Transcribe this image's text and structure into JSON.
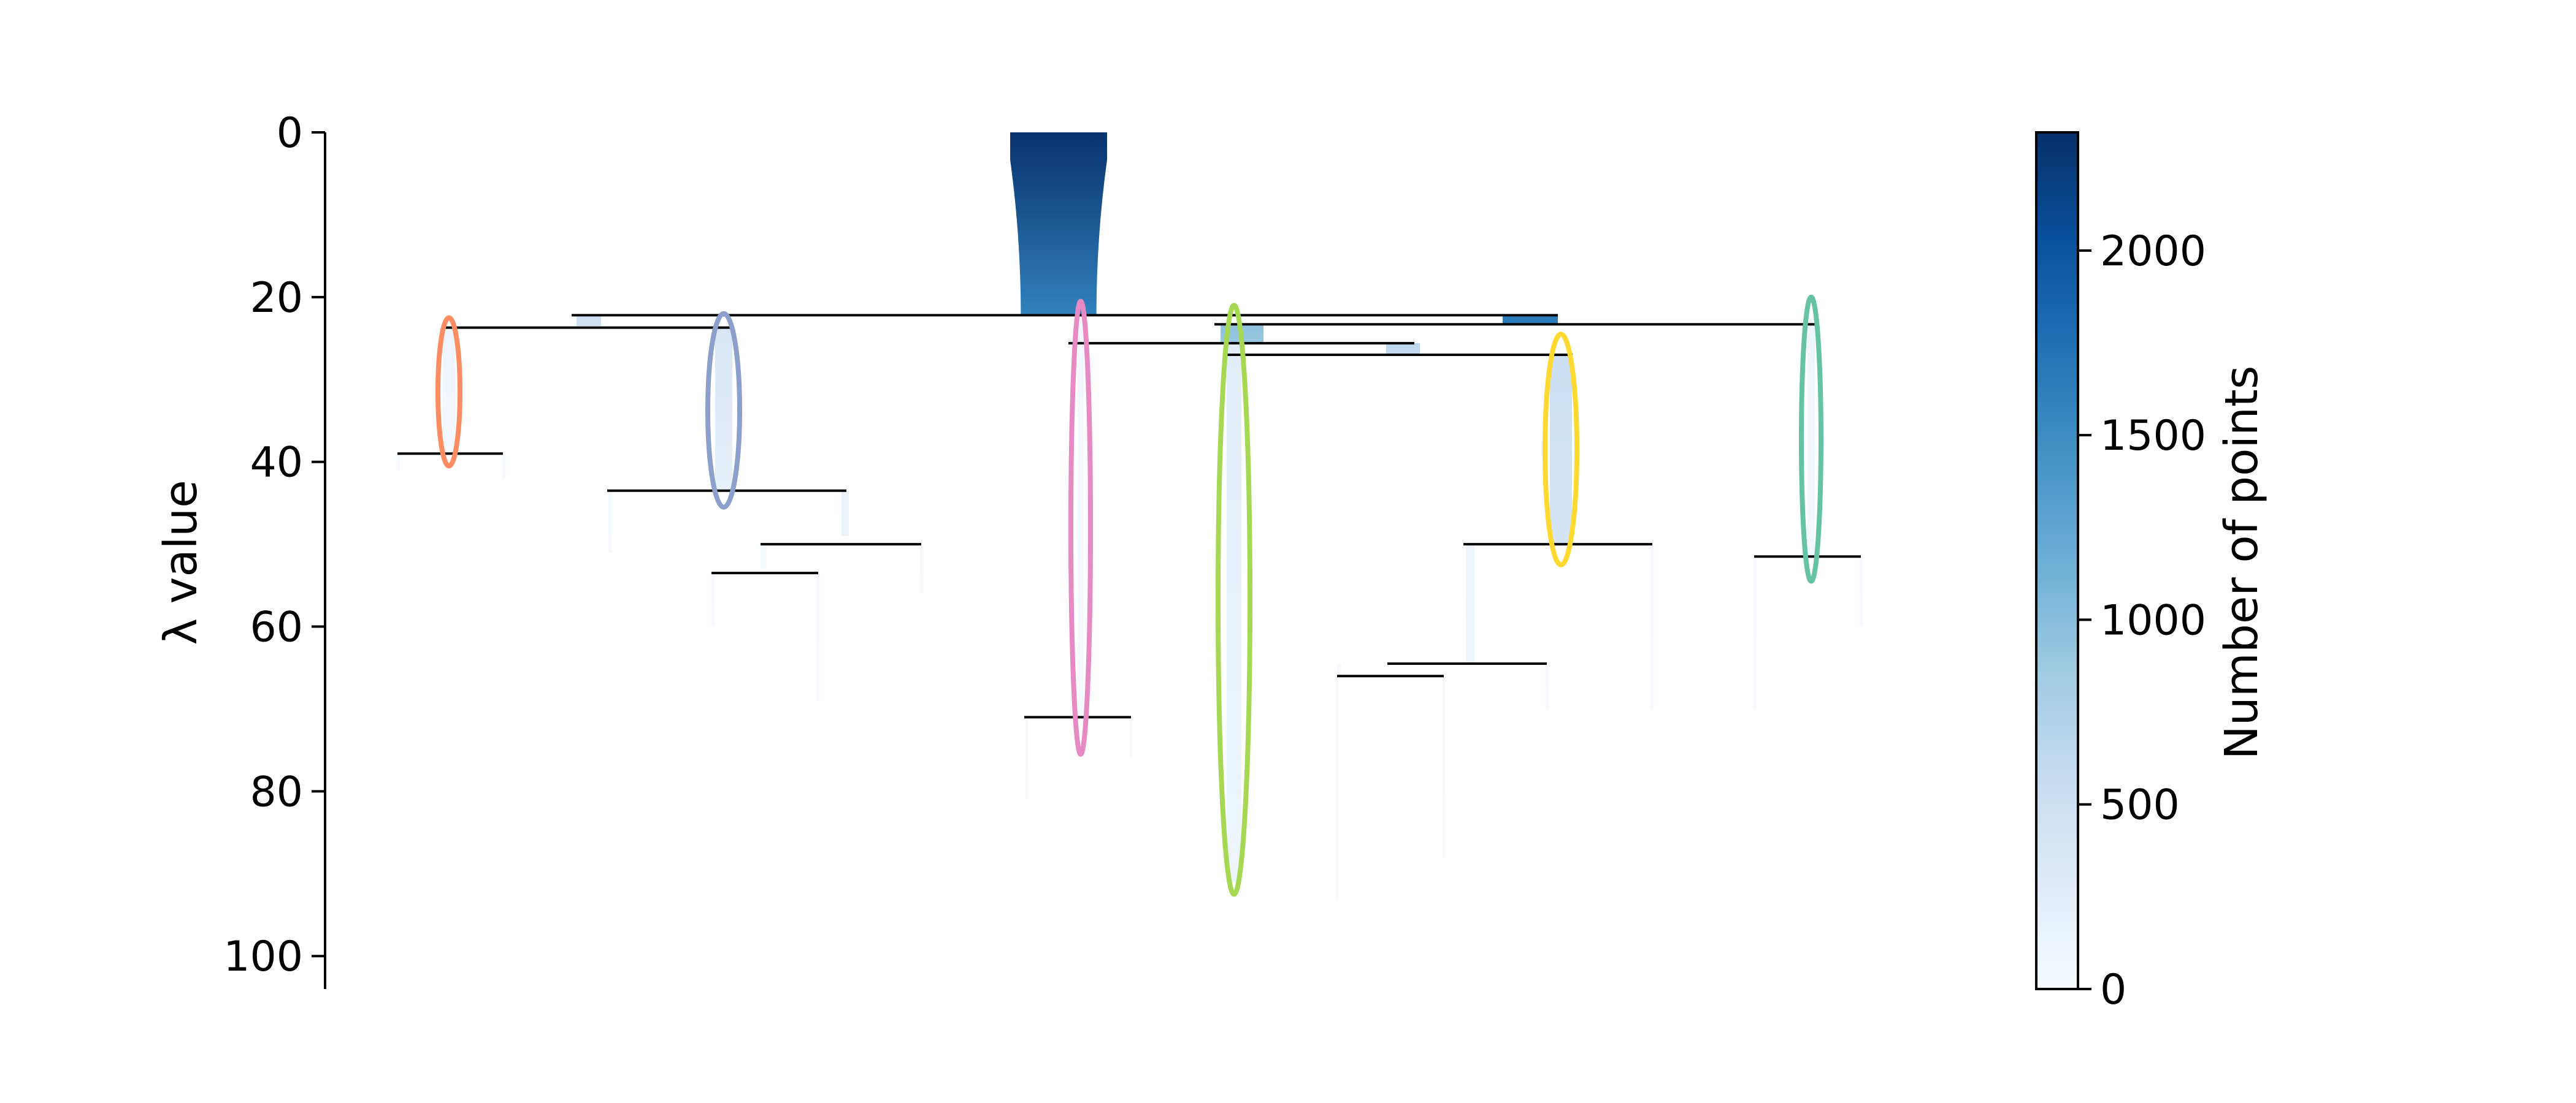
{
  "chart_data": {
    "type": "condensed-tree",
    "title": "",
    "xlabel": "",
    "ylabel": "λ value",
    "ylim": [
      0,
      104
    ],
    "y_inverted": true,
    "yticks": [
      0,
      20,
      40,
      60,
      80,
      100
    ],
    "colorbar": {
      "label": "Number of points",
      "range": [
        0,
        2320
      ],
      "ticks": [
        0,
        500,
        1000,
        1500,
        2000
      ],
      "colormap": "Blues"
    },
    "branches": [
      {
        "id": "root",
        "x_left": 1647,
        "x_right": 1805,
        "y_start": 0,
        "y_end": 22.2,
        "points_start": 2300,
        "points_end": 1600,
        "bottom_ratio": 0.78
      },
      {
        "id": "b1",
        "x_left": 940,
        "x_right": 980,
        "y_start": 22.2,
        "y_end": 23.5,
        "points_start": 500,
        "points_end": 500
      },
      {
        "id": "b2",
        "x_left": 2450,
        "x_right": 2540,
        "y_start": 22.2,
        "y_end": 23.3,
        "points_start": 1650,
        "points_end": 1650
      },
      {
        "id": "b3",
        "x_left": 1990,
        "x_right": 2060,
        "y_start": 23.3,
        "y_end": 25.6,
        "points_start": 950,
        "points_end": 900
      },
      {
        "id": "b4",
        "x_left": 2260,
        "x_right": 2315,
        "y_start": 25.6,
        "y_end": 27.0,
        "points_start": 650,
        "points_end": 600
      },
      {
        "id": "c1",
        "x_left": 722,
        "x_right": 742,
        "y_start": 23.7,
        "y_end": 39,
        "points_start": 120,
        "points_end": 40
      },
      {
        "id": "c2",
        "x_left": 1166,
        "x_right": 1194,
        "y_start": 23.7,
        "y_end": 43.5,
        "points_start": 380,
        "points_end": 200
      },
      {
        "id": "c3",
        "x_left": 1757,
        "x_right": 1767,
        "y_start": 22.2,
        "y_end": 71,
        "points_start": 70,
        "points_end": 30
      },
      {
        "id": "c4",
        "x_left": 2000,
        "x_right": 2024,
        "y_start": 25.6,
        "y_end": 91,
        "points_start": 260,
        "points_end": 110
      },
      {
        "id": "c5",
        "x_left": 2527,
        "x_right": 2563,
        "y_start": 27.0,
        "y_end": 50,
        "points_start": 520,
        "points_end": 420
      },
      {
        "id": "c6",
        "x_left": 2947,
        "x_right": 2959,
        "y_start": 23.3,
        "y_end": 51.5,
        "points_start": 110,
        "points_end": 60
      },
      {
        "id": "l1",
        "x_left": 646,
        "x_right": 652,
        "y_start": 39,
        "y_end": 41,
        "points_start": 20,
        "points_end": 10
      },
      {
        "id": "l2",
        "x_left": 818,
        "x_right": 824,
        "y_start": 39,
        "y_end": 42,
        "points_start": 20,
        "points_end": 10
      },
      {
        "id": "l3",
        "x_left": 992,
        "x_right": 998,
        "y_start": 43.5,
        "y_end": 51,
        "points_start": 30,
        "points_end": 10
      },
      {
        "id": "l4",
        "x_left": 1372,
        "x_right": 1384,
        "y_start": 43.5,
        "y_end": 49,
        "points_start": 160,
        "points_end": 130
      },
      {
        "id": "l5",
        "x_left": 1240,
        "x_right": 1250,
        "y_start": 50,
        "y_end": 53,
        "points_start": 40,
        "points_end": 20
      },
      {
        "id": "l6",
        "x_left": 1500,
        "x_right": 1506,
        "y_start": 50,
        "y_end": 56,
        "points_start": 15,
        "points_end": 5
      },
      {
        "id": "l7",
        "x_left": 1160,
        "x_right": 1166,
        "y_start": 53.5,
        "y_end": 60,
        "points_start": 15,
        "points_end": 5
      },
      {
        "id": "l8",
        "x_left": 1330,
        "x_right": 1336,
        "y_start": 53.5,
        "y_end": 69,
        "points_start": 15,
        "points_end": 5
      },
      {
        "id": "l9",
        "x_left": 1672,
        "x_right": 1676,
        "y_start": 71,
        "y_end": 81,
        "points_start": 10,
        "points_end": 4
      },
      {
        "id": "l10",
        "x_left": 1842,
        "x_right": 1846,
        "y_start": 71,
        "y_end": 76,
        "points_start": 10,
        "points_end": 4
      },
      {
        "id": "l11",
        "x_left": 2390,
        "x_right": 2404,
        "y_start": 50,
        "y_end": 64.5,
        "points_start": 110,
        "points_end": 90
      },
      {
        "id": "l12",
        "x_left": 2690,
        "x_right": 2696,
        "y_start": 50,
        "y_end": 70,
        "points_start": 10,
        "points_end": 4
      },
      {
        "id": "l13",
        "x_left": 2180,
        "x_right": 2186,
        "y_start": 64.5,
        "y_end": 66,
        "points_start": 10,
        "points_end": 4
      },
      {
        "id": "l14",
        "x_left": 2520,
        "x_right": 2526,
        "y_start": 64.5,
        "y_end": 70,
        "points_start": 10,
        "points_end": 4
      },
      {
        "id": "l15",
        "x_left": 2178,
        "x_right": 2182,
        "y_start": 66,
        "y_end": 93,
        "points_start": 10,
        "points_end": 3
      },
      {
        "id": "l16",
        "x_left": 2352,
        "x_right": 2356,
        "y_start": 66,
        "y_end": 88,
        "points_start": 10,
        "points_end": 3
      },
      {
        "id": "l17",
        "x_left": 2858,
        "x_right": 2864,
        "y_start": 51.5,
        "y_end": 70,
        "points_start": 10,
        "points_end": 4
      },
      {
        "id": "l18",
        "x_left": 3032,
        "x_right": 3038,
        "y_start": 51.5,
        "y_end": 60,
        "points_start": 10,
        "points_end": 4
      }
    ],
    "splits": [
      {
        "id": "s1",
        "x_start": 932,
        "x_end": 2540,
        "y": 22.2
      },
      {
        "id": "s2",
        "x_start": 720,
        "x_end": 1194,
        "y": 23.7
      },
      {
        "id": "s3",
        "x_start": 1980,
        "x_end": 2960,
        "y": 23.3
      },
      {
        "id": "s4",
        "x_start": 1742,
        "x_end": 2306,
        "y": 25.6
      },
      {
        "id": "s5",
        "x_start": 1996,
        "x_end": 2564,
        "y": 27.0
      },
      {
        "id": "s6",
        "x_start": 648,
        "x_end": 820,
        "y": 39.0
      },
      {
        "id": "s7",
        "x_start": 990,
        "x_end": 1380,
        "y": 43.5
      },
      {
        "id": "s8",
        "x_start": 1240,
        "x_end": 1502,
        "y": 50.0
      },
      {
        "id": "s9",
        "x_start": 1160,
        "x_end": 1334,
        "y": 53.5
      },
      {
        "id": "s10",
        "x_start": 1670,
        "x_end": 1844,
        "y": 71.0
      },
      {
        "id": "s11",
        "x_start": 2386,
        "x_end": 2694,
        "y": 50.0
      },
      {
        "id": "s12",
        "x_start": 2262,
        "x_end": 2522,
        "y": 64.5
      },
      {
        "id": "s13",
        "x_start": 2180,
        "x_end": 2354,
        "y": 66.0
      },
      {
        "id": "s14",
        "x_start": 2860,
        "x_end": 3034,
        "y": 51.5
      }
    ],
    "selected_clusters": [
      {
        "id": "sel1",
        "color": "#fc8d62",
        "cx": 732,
        "rx": 18,
        "y_top": 22.5,
        "y_bottom": 40.5
      },
      {
        "id": "sel2",
        "color": "#8da0cb",
        "cx": 1180,
        "rx": 26,
        "y_top": 22,
        "y_bottom": 45.5
      },
      {
        "id": "sel3",
        "color": "#e78ac3",
        "cx": 1762,
        "rx": 16,
        "y_top": 20.5,
        "y_bottom": 75.5
      },
      {
        "id": "sel4",
        "color": "#a6d854",
        "cx": 2012,
        "rx": 26,
        "y_top": 21,
        "y_bottom": 92.5
      },
      {
        "id": "sel5",
        "color": "#ffd92f",
        "cx": 2545,
        "rx": 26,
        "y_top": 24.5,
        "y_bottom": 52.5
      },
      {
        "id": "sel6",
        "color": "#66c2a5",
        "cx": 2953,
        "rx": 16,
        "y_top": 20,
        "y_bottom": 54.5
      }
    ]
  }
}
